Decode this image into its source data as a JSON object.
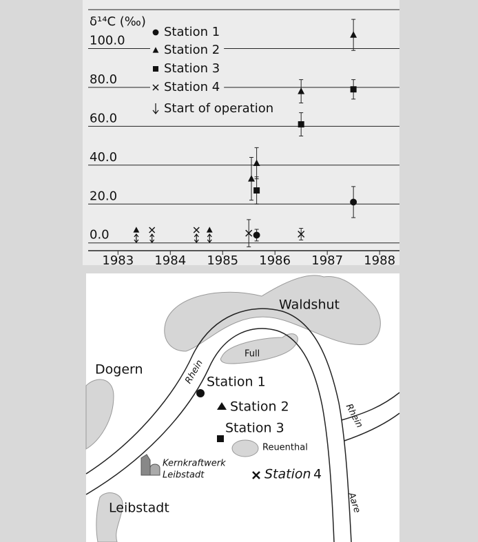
{
  "chart_data": {
    "type": "scatter",
    "ylabel": "δ¹⁴C (‰)",
    "xlim": [
      1982.43,
      1988.38
    ],
    "xticks": [
      1983,
      1984,
      1985,
      1986,
      1987,
      1988
    ],
    "ylim": [
      -4,
      120
    ],
    "yticks": [
      {
        "value": 0,
        "label": "0.0"
      },
      {
        "value": 20,
        "label": "20.0"
      },
      {
        "value": 40,
        "label": "40.0"
      },
      {
        "value": 60,
        "label": "60.0"
      },
      {
        "value": 80,
        "label": "80.0"
      },
      {
        "value": 100,
        "label": "100.0"
      }
    ],
    "grid": true,
    "series": [
      {
        "name": "Station 1",
        "marker": "circle",
        "x": [
          1985.65,
          1987.5
        ],
        "values": [
          4,
          21
        ],
        "errors": [
          3,
          8
        ]
      },
      {
        "name": "Station 2",
        "marker": "triangle",
        "x": [
          1985.55,
          1985.65,
          1986.5,
          1987.5
        ],
        "values": [
          33,
          41,
          78,
          107
        ],
        "errors": [
          11,
          8,
          6,
          8
        ],
        "start_x": [
          1983.35,
          1984.75
        ]
      },
      {
        "name": "Station 3",
        "marker": "square",
        "x": [
          1985.65,
          1986.5,
          1987.5
        ],
        "values": [
          27,
          61,
          79
        ],
        "errors": [
          7,
          6,
          5
        ]
      },
      {
        "name": "Station 4",
        "marker": "cross",
        "x": [
          1985.5,
          1986.5
        ],
        "values": [
          5,
          4.5
        ],
        "errors": [
          7,
          3
        ],
        "start_x": [
          1983.65,
          1984.5
        ]
      }
    ],
    "event_label": "Start of operation"
  },
  "map": {
    "places": [
      "Waldshut",
      "Full",
      "Dogern",
      "Reuenthal",
      "Leibstadt"
    ],
    "rivers": [
      "Rhein",
      "Rhein",
      "Aare"
    ],
    "stations": [
      "Station 1",
      "Station 2",
      "Station 3"
    ],
    "station_4": [
      "Station",
      "4"
    ],
    "plant": [
      "Kernkraftwerk",
      "Leibstadt"
    ]
  }
}
